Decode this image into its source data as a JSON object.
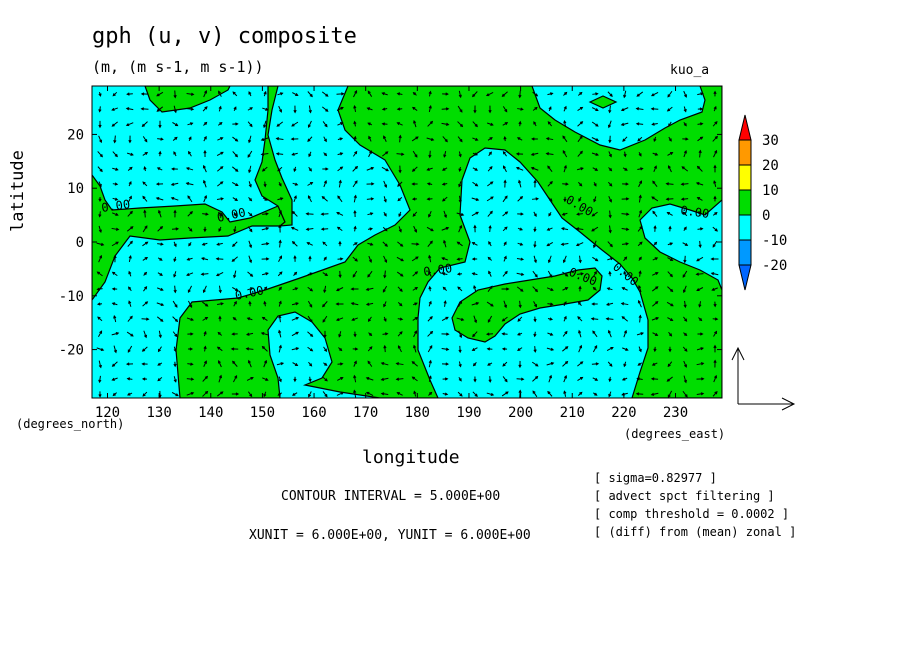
{
  "chart_data": {
    "type": "contour+vector",
    "title": "gph (u, v) composite",
    "subtitle": "(m, (m s-1, m s-1))",
    "run_label": "kuo_a",
    "xlabel": "longitude",
    "ylabel": "latitude",
    "x_units": "(degrees_east)",
    "y_units": "(degrees_north)",
    "xlim": [
      117,
      239
    ],
    "ylim": [
      -29,
      29
    ],
    "x_ticks": [
      120,
      130,
      140,
      150,
      160,
      170,
      180,
      190,
      200,
      210,
      220,
      230
    ],
    "y_ticks": [
      -20,
      -10,
      0,
      10,
      20
    ],
    "contour_label": "0.00",
    "fill_colors": {
      "below_zero": "#00ffff",
      "above_zero": "#00dd00"
    },
    "colorbar": {
      "labels": [
        "30",
        "20",
        "10",
        "0",
        "-10",
        "-20"
      ],
      "colors": [
        "#ff0000",
        "#ff9900",
        "#ffff00",
        "#00dd00",
        "#00ffff",
        "#0099ff",
        "#0066ff"
      ]
    },
    "contour_interval": "CONTOUR INTERVAL = 5.000E+00",
    "vector_units": "XUNIT = 6.000E+00, YUNIT = 6.000E+00",
    "notes": [
      "[ sigma=0.82977 ]",
      "[ advect spct filtering ]",
      "[ comp threshold = 0.0002 ]",
      "[ (diff) from (mean) zonal ]"
    ]
  }
}
